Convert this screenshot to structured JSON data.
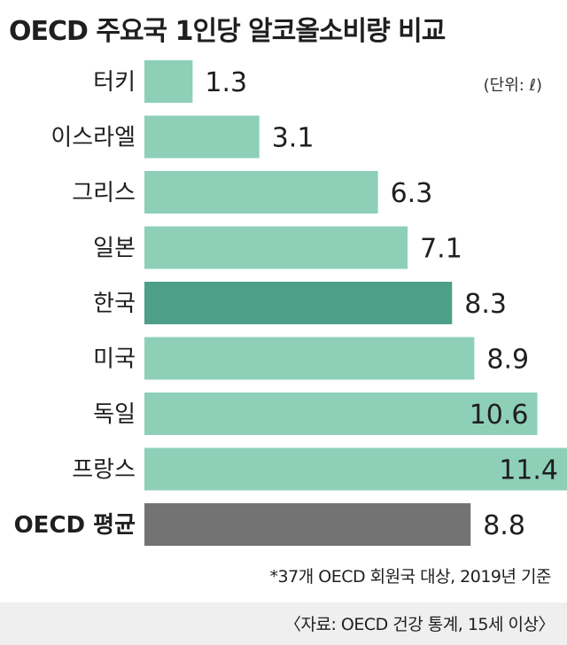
{
  "title": "OECD 주요국 1인당 알코올소비량 비교",
  "unit_note": "(단위: ℓ)",
  "footnote": "*37개 OECD 회원국 대상, 2019년 기준",
  "source": "〈자료: OECD 건강 통계, 15세 이상〉",
  "colors": {
    "bar": "#8ecfb8",
    "highlight": "#4e9f88",
    "average": "#737373"
  },
  "chart_data": {
    "type": "bar",
    "orientation": "horizontal",
    "categories": [
      "터키",
      "이스라엘",
      "그리스",
      "일본",
      "한국",
      "미국",
      "독일",
      "프랑스",
      "OECD 평균"
    ],
    "values": [
      1.3,
      3.1,
      6.3,
      7.1,
      8.3,
      8.9,
      10.6,
      11.4,
      8.8
    ],
    "value_labels": [
      "1.3",
      "3.1",
      "6.3",
      "7.1",
      "8.3",
      "8.9",
      "10.6",
      "11.4",
      "8.8"
    ],
    "highlight": "한국",
    "average_category": "OECD 평균",
    "unit": "ℓ",
    "xlim": [
      0,
      11.4
    ],
    "grid": false,
    "legend": "none"
  }
}
